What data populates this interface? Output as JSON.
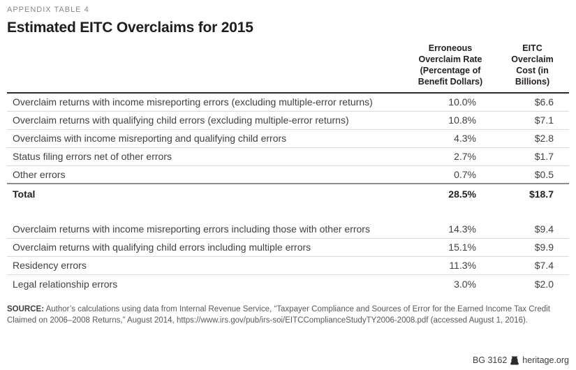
{
  "page": {
    "eyebrow": "APPENDIX TABLE 4",
    "title": "Estimated EITC Overclaims for 2015"
  },
  "table": {
    "columns": [
      {
        "label": "Erroneous Overclaim Rate (Percentage of Benefit Dollars)"
      },
      {
        "label": "EITC Overclaim Cost (in Billions)"
      }
    ],
    "primary_rows": [
      {
        "label": "Overclaim returns with income misreporting errors (excluding multiple-error returns)",
        "rate": "10.0%",
        "cost": "$6.6"
      },
      {
        "label": "Overclaim returns with qualifying child errors (excluding multiple-error returns)",
        "rate": "10.8%",
        "cost": "$7.1"
      },
      {
        "label": "Overclaims with income misreporting and qualifying child errors",
        "rate": "4.3%",
        "cost": "$2.8"
      },
      {
        "label": "Status filing errors net of other errors",
        "rate": "2.7%",
        "cost": "$1.7"
      },
      {
        "label": "Other errors",
        "rate": "0.7%",
        "cost": "$0.5"
      }
    ],
    "total_row": {
      "label": "Total",
      "rate": "28.5%",
      "cost": "$18.7"
    },
    "secondary_rows": [
      {
        "label": "Overclaim returns with  income misreporting errors including those with other errors",
        "rate": "14.3%",
        "cost": "$9.4"
      },
      {
        "label": "Overclaim returns with qualifying child errors including multiple errors",
        "rate": "15.1%",
        "cost": "$9.9"
      },
      {
        "label": "Residency errors",
        "rate": "11.3%",
        "cost": "$7.4"
      },
      {
        "label": "Legal relationship errors",
        "rate": "3.0%",
        "cost": "$2.0"
      }
    ]
  },
  "source": {
    "label": "SOURCE:",
    "text": "Author’s calculations using data from Internal Revenue Service, “Taxpayer Compliance and Sources of Error for the Earned Income Tax Credit Claimed on 2006–2008 Returns,” August 2014, https://www.irs.gov/pub/irs-soi/EITCComplianceStudyTY2006-2008.pdf (accessed August 1, 2016)."
  },
  "footer": {
    "doc_id": "BG 3162",
    "site": "heritage.org",
    "icon": "liberty-bell-icon"
  },
  "colors": {
    "title_text": "#1d1d1f",
    "header_text": "#231f20",
    "row_text": "#414042",
    "muted_text": "#85878a",
    "source_text": "#58595b",
    "rule_dark": "#2b2b2d",
    "rule_medium": "#8b8d90",
    "rule_light": "#d9dadb"
  }
}
